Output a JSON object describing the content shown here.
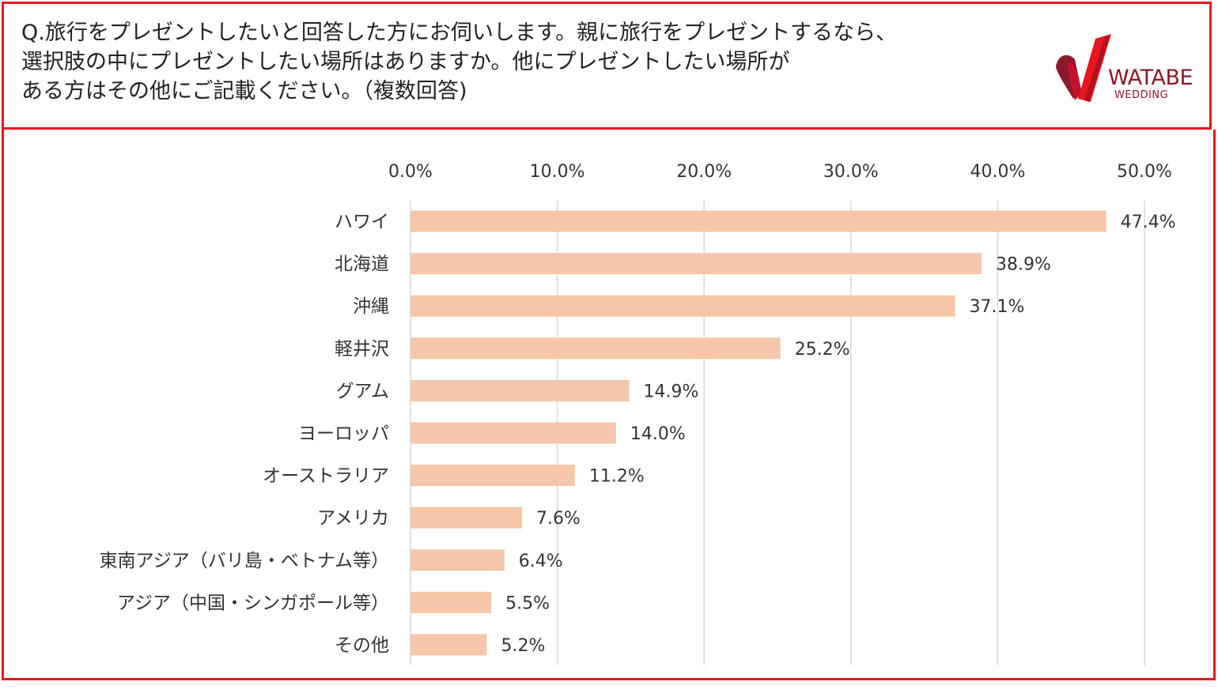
{
  "header": {
    "question": "Q.旅行をプレゼントしたいと回答した方にお伺いします。親に旅行をプレゼントするなら、\n選択肢の中にプレゼントしたい場所はありますか。他にプレゼントしたい場所が\nある方はその他にご記載ください。（複数回答)"
  },
  "logo": {
    "brand": "WATABE",
    "sub": "WEDDING",
    "colors": {
      "dark": "#8b1a2b",
      "red": "#e8161e"
    }
  },
  "chart_data": {
    "type": "bar",
    "orientation": "horizontal",
    "categories": [
      "ハワイ",
      "北海道",
      "沖縄",
      "軽井沢",
      "グアム",
      "ヨーロッパ",
      "オーストラリア",
      "アメリカ",
      "東南アジア（バリ島・ベトナム等）",
      "アジア（中国・シンガポール等）",
      "その他"
    ],
    "values": [
      47.4,
      38.9,
      37.1,
      25.2,
      14.9,
      14.0,
      11.2,
      7.6,
      6.4,
      5.5,
      5.2
    ],
    "value_labels": [
      "47.4%",
      "38.9%",
      "37.1%",
      "25.2%",
      "14.9%",
      "14.0%",
      "11.2%",
      "7.6%",
      "6.4%",
      "5.5%",
      "5.2%"
    ],
    "xticks": [
      0,
      10,
      20,
      30,
      40,
      50
    ],
    "xtick_labels": [
      "0.0%",
      "10.0%",
      "20.0%",
      "30.0%",
      "40.0%",
      "50.0%"
    ],
    "xlim": [
      0,
      50
    ],
    "axis_position": "top",
    "grid": true,
    "bar_color": "#f5c6a8",
    "grid_color": "#d9d9d9"
  }
}
